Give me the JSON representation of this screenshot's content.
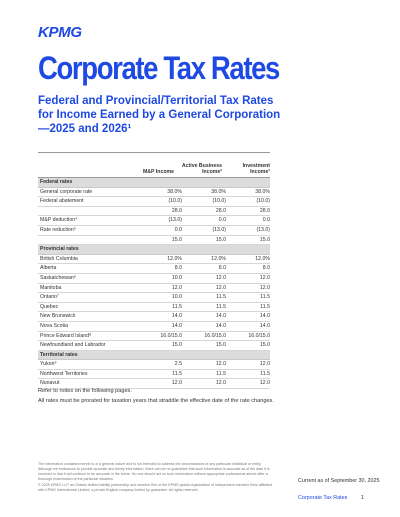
{
  "brand": {
    "logo": "KPMG"
  },
  "header": {
    "title": "Corporate Tax Rates",
    "subtitle": "Federal and Provincial/Territorial Tax Rates for Income Earned by a General Corporation—2025 and 2026¹"
  },
  "table": {
    "columns": [
      "M&P Income",
      "Active Business Income²",
      "Investment Income³"
    ],
    "sections": [
      {
        "title": "Federal rates",
        "rows": [
          {
            "label": "General corporate rate",
            "values": [
              "38.0%",
              "38.0%",
              "38.0%"
            ]
          },
          {
            "label": "Federal abatement",
            "values": [
              "(10.0)",
              "(10.0)",
              "(10.0)"
            ]
          },
          {
            "label": "",
            "values": [
              "28.0",
              "28.0",
              "28.0"
            ]
          },
          {
            "label": "M&P deduction⁴",
            "values": [
              "(13.0)",
              "0.0",
              "0.0"
            ]
          },
          {
            "label": "Rate reduction⁵",
            "values": [
              "0.0",
              "(13.0)",
              "(13.0)"
            ]
          },
          {
            "label": "",
            "values": [
              "15.0",
              "15.0",
              "15.0"
            ]
          }
        ]
      },
      {
        "title": "Provincial rates",
        "rows": [
          {
            "label": "British Columbia",
            "values": [
              "12.0%",
              "12.0%",
              "12.0%"
            ]
          },
          {
            "label": "Alberta",
            "values": [
              "8.0",
              "8.0",
              "8.0"
            ]
          },
          {
            "label": "Saskatchewan⁶",
            "values": [
              "10.0",
              "12.0",
              "12.0"
            ]
          },
          {
            "label": "Manitoba",
            "values": [
              "12.0",
              "12.0",
              "12.0"
            ]
          },
          {
            "label": "Ontario⁷",
            "values": [
              "10.0",
              "11.5",
              "11.5"
            ]
          },
          {
            "label": "Quebec",
            "values": [
              "11.5",
              "11.5",
              "11.5"
            ]
          },
          {
            "label": "New Brunswick",
            "values": [
              "14.0",
              "14.0",
              "14.0"
            ]
          },
          {
            "label": "Nova Scotia",
            "values": [
              "14.0",
              "14.0",
              "14.0"
            ]
          },
          {
            "label": "Prince Edward Island⁸",
            "values": [
              "16.0/15.0",
              "16.0/15.0",
              "16.0/15.0"
            ]
          },
          {
            "label": "Newfoundland and Labrador",
            "values": [
              "15.0",
              "15.0",
              "15.0"
            ]
          }
        ]
      },
      {
        "title": "Territorial rates",
        "rows": [
          {
            "label": "Yukon⁹",
            "values": [
              "2.5",
              "12.0",
              "12.0"
            ]
          },
          {
            "label": "Northwest Territories",
            "values": [
              "11.5",
              "11.5",
              "11.5"
            ]
          },
          {
            "label": "Nunavut",
            "values": [
              "12.0",
              "12.0",
              "12.0"
            ]
          }
        ]
      }
    ]
  },
  "notes": {
    "refer": "Refer to notes on the following pages.",
    "prorated": "All rates must be prorated for taxation years that straddle the effective date of the rate changes."
  },
  "disclaimer": {
    "para1": "The information contained herein is of a general nature and is not intended to address the circumstances of any particular individual or entity. Although we endeavour to provide accurate and timely information, there can be no guarantee that such information is accurate as of the date it is received or that it will continue to be accurate in the future. No one should act on such information without appropriate professional advice after a thorough examination of the particular situation.",
    "para2": "© 2025 KPMG LLP, an Ontario limited liability partnership and member firm of the KPMG global organization of independent member firms affiliated with KPMG International Limited, a private English company limited by guarantee. All rights reserved."
  },
  "footer": {
    "current": "Current as of September 30, 2025",
    "doc_name": "Corporate Tax Rates",
    "page": "1"
  }
}
